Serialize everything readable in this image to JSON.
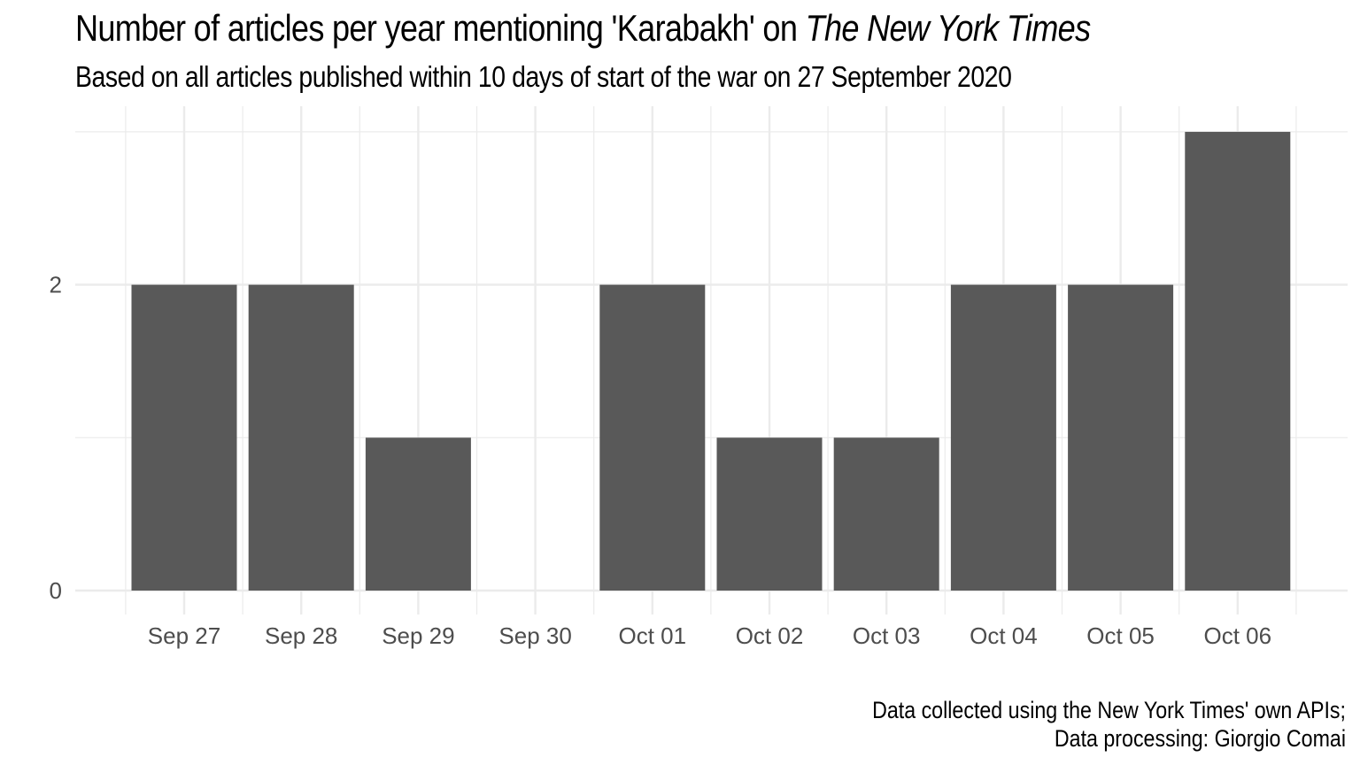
{
  "chart_data": {
    "type": "bar",
    "title_main": "Number of articles per year mentioning 'Karabakh' on ",
    "title_em": "The New York Times",
    "subtitle": "Based on all articles published within 10 days of start of the war on 27 September 2020",
    "caption_line1": "Data collected using the New York Times' own APIs;",
    "caption_line2": "Data processing: Giorgio Comai",
    "categories": [
      "Sep 27",
      "Sep 28",
      "Sep 29",
      "Sep 30",
      "Oct 01",
      "Oct 02",
      "Oct 03",
      "Oct 04",
      "Oct 05",
      "Oct 06"
    ],
    "values": [
      2,
      2,
      1,
      0,
      2,
      1,
      1,
      2,
      2,
      3
    ],
    "yticks": [
      0,
      2
    ],
    "ylim": [
      0,
      3
    ],
    "grid": true,
    "bar_color": "#595959",
    "grid_color": "#ebebeb"
  }
}
